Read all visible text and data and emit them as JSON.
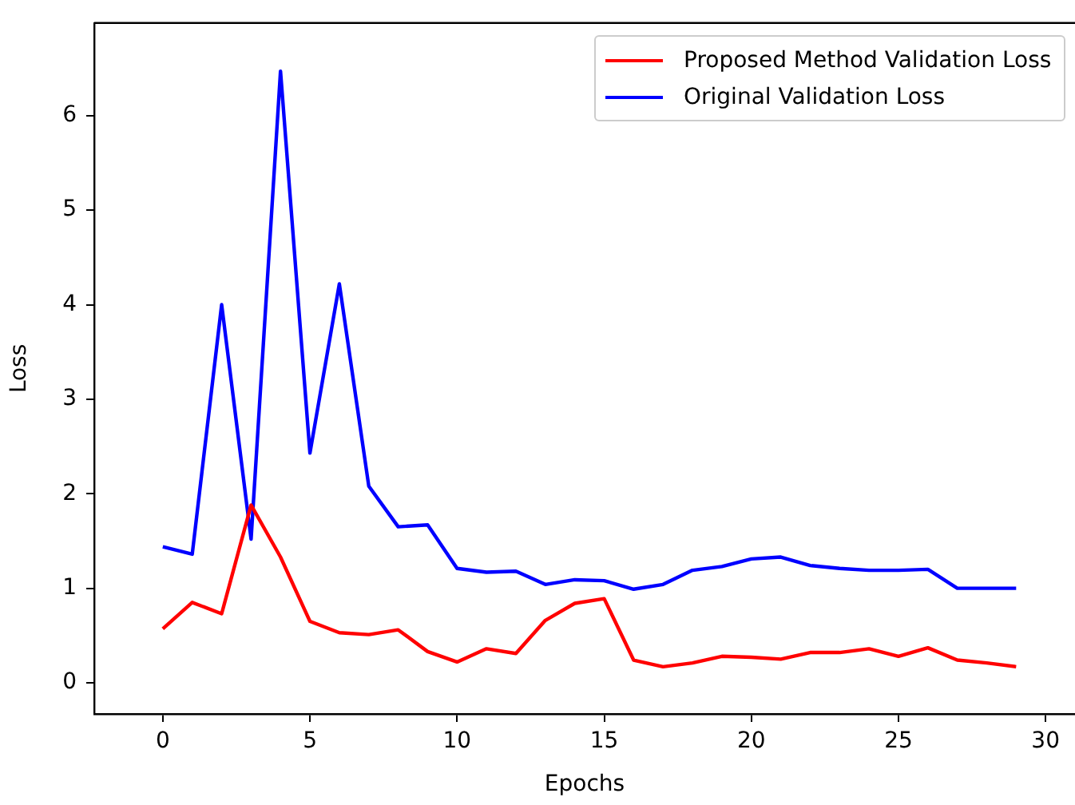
{
  "chart_data": {
    "type": "line",
    "xlabel": "Epochs",
    "ylabel": "Loss",
    "x": [
      0,
      1,
      2,
      3,
      4,
      5,
      6,
      7,
      8,
      9,
      10,
      11,
      12,
      13,
      14,
      15,
      16,
      17,
      18,
      19,
      20,
      21,
      22,
      23,
      24,
      25,
      26,
      27,
      28,
      29
    ],
    "xlim": [
      -2.33,
      31.0
    ],
    "ylim": [
      -0.33,
      6.98
    ],
    "xticks": [
      0,
      5,
      10,
      15,
      20,
      25,
      30
    ],
    "yticks": [
      0,
      1,
      2,
      3,
      4,
      5,
      6
    ],
    "legend": "top right",
    "series": [
      {
        "name": "Proposed Method Validation Loss",
        "color": "#ff0000",
        "values": [
          0.57,
          0.85,
          0.73,
          1.88,
          1.33,
          0.65,
          0.53,
          0.51,
          0.56,
          0.33,
          0.22,
          0.36,
          0.31,
          0.66,
          0.84,
          0.89,
          0.24,
          0.17,
          0.21,
          0.28,
          0.27,
          0.25,
          0.32,
          0.32,
          0.36,
          0.28,
          0.37,
          0.24,
          0.21,
          0.17
        ]
      },
      {
        "name": "Original Validation Loss",
        "color": "#0000ff",
        "values": [
          1.44,
          1.36,
          4.0,
          1.52,
          6.47,
          2.43,
          4.22,
          2.08,
          1.65,
          1.67,
          1.21,
          1.17,
          1.18,
          1.04,
          1.09,
          1.08,
          0.99,
          1.04,
          1.19,
          1.23,
          1.31,
          1.33,
          1.24,
          1.21,
          1.19,
          1.19,
          1.2,
          1.0,
          1.0,
          1.0
        ]
      }
    ]
  }
}
